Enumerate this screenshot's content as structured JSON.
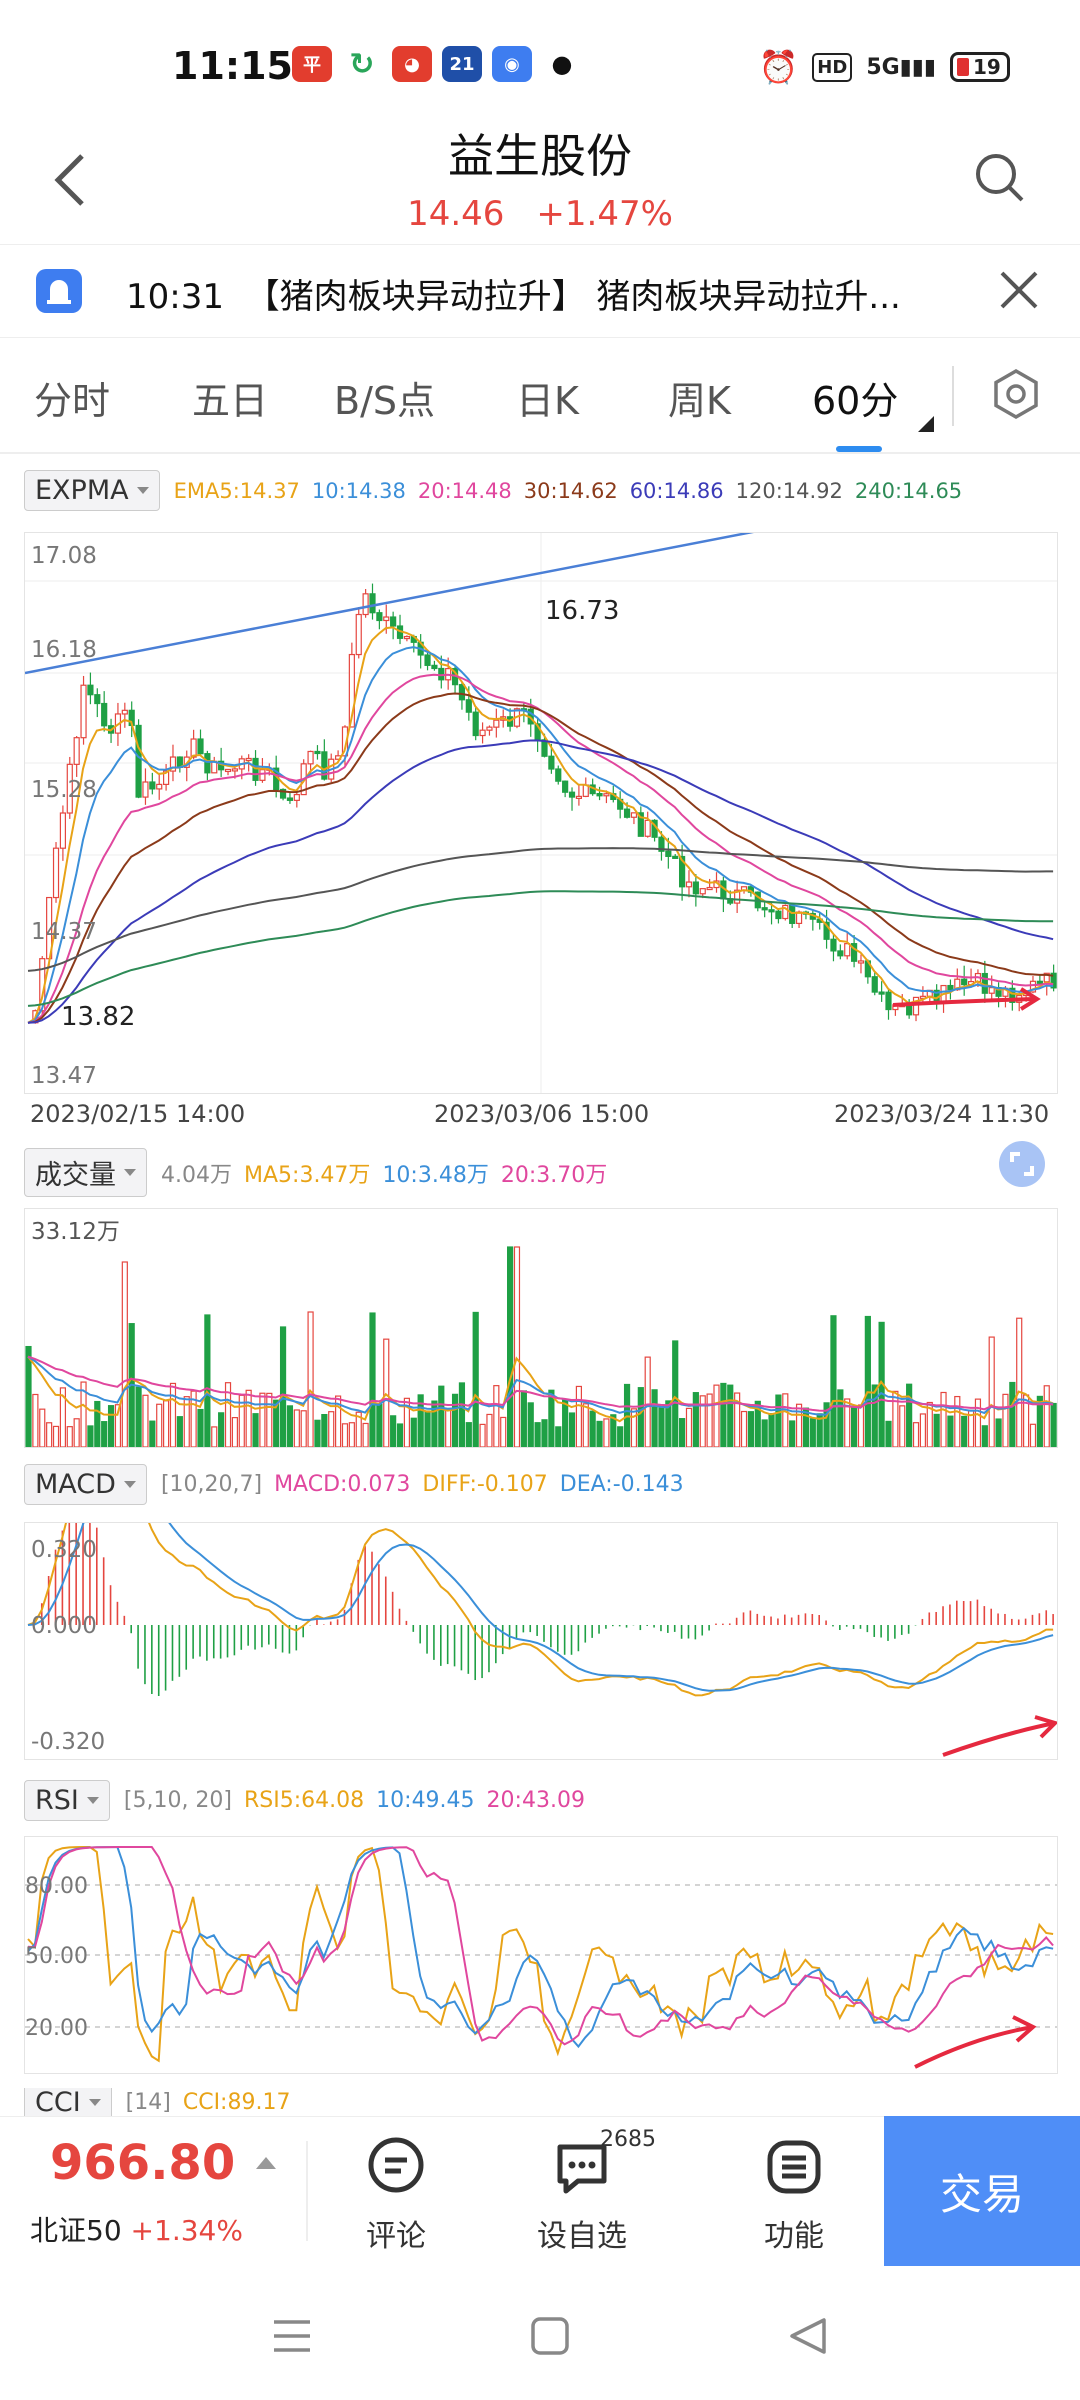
{
  "status": {
    "time": "11:15",
    "battery": "19"
  },
  "header": {
    "title": "益生股份",
    "price": "14.46",
    "change": "+1.47%"
  },
  "news": {
    "time": "10:31",
    "text": "【猪肉板块异动拉升】 猪肉板块异动拉升..."
  },
  "tabs": [
    "分时",
    "五日",
    "B/S点",
    "日K",
    "周K",
    "60分"
  ],
  "expma": {
    "name": "EXPMA",
    "values": [
      {
        "label": "EMA5:14.37",
        "color": "#e8a317"
      },
      {
        "label": "10:14.38",
        "color": "#3b8fd9"
      },
      {
        "label": "20:14.48",
        "color": "#e0479e"
      },
      {
        "label": "30:14.62",
        "color": "#8b3a1a"
      },
      {
        "label": "60:14.86",
        "color": "#3b3bb8"
      },
      {
        "label": "120:14.92",
        "color": "#555555"
      },
      {
        "label": "240:14.65",
        "color": "#2e8b57"
      }
    ]
  },
  "kline_axis": {
    "y_labels": [
      "17.08",
      "16.18",
      "15.28",
      "14.37",
      "13.47"
    ],
    "high": "16.73",
    "low": "13.82",
    "x_labels": [
      "2023/02/15 14:00",
      "2023/03/06 15:00",
      "2023/03/24 11:30"
    ]
  },
  "volume": {
    "name": "成交量",
    "values": [
      {
        "label": "4.04万",
        "color": "#888888"
      },
      {
        "label": "MA5:3.47万",
        "color": "#e8a317"
      },
      {
        "label": "10:3.48万",
        "color": "#3b8fd9"
      },
      {
        "label": "20:3.70万",
        "color": "#e0479e"
      }
    ],
    "max": "33.12万"
  },
  "macd": {
    "name": "MACD",
    "params": "[10,20,7]",
    "values": [
      {
        "label": "MACD:0.073",
        "color": "#e0479e"
      },
      {
        "label": "DIFF:-0.107",
        "color": "#e8a317"
      },
      {
        "label": "DEA:-0.143",
        "color": "#3b8fd9"
      }
    ],
    "y_labels": [
      "0.320",
      "0.000",
      "-0.320"
    ]
  },
  "rsi": {
    "name": "RSI",
    "params": "[5,10, 20]",
    "values": [
      {
        "label": "RSI5:64.08",
        "color": "#e8a317"
      },
      {
        "label": "10:49.45",
        "color": "#3b8fd9"
      },
      {
        "label": "20:43.09",
        "color": "#e0479e"
      }
    ],
    "y_labels": [
      "80.00",
      "50.00",
      "20.00"
    ]
  },
  "cci": {
    "name": "CCI",
    "params": "[14]",
    "value": "CCI:89.17"
  },
  "bottom": {
    "index_value": "966.80",
    "index_name": "北证50",
    "index_change": "+1.34%",
    "comment": "评论",
    "watch": "设自选",
    "watch_count": "2685",
    "function": "功能",
    "trade": "交易"
  }
}
